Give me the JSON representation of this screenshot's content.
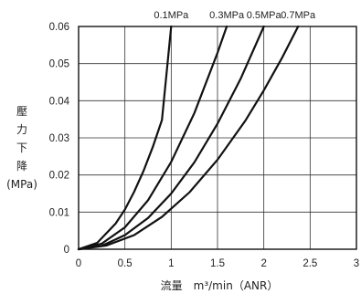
{
  "chart_data": {
    "type": "line",
    "xlim": [
      0,
      3
    ],
    "ylim": [
      0,
      0.06
    ],
    "xticks": [
      "0",
      "0.5",
      "1",
      "1.5",
      "2",
      "2.5",
      "3"
    ],
    "yticks": [
      "0",
      "0.01",
      "0.02",
      "0.03",
      "0.04",
      "0.05",
      "0.06"
    ],
    "xlabel": "流量　m³/min（ANR）",
    "ylabel_lines": [
      "壓",
      "力",
      "下",
      "降",
      "(MPa)"
    ],
    "grid": true,
    "series": [
      {
        "name": "0.1MPa",
        "x": [
          0,
          0.2,
          0.4,
          0.5,
          0.6,
          0.7,
          0.8,
          0.9,
          1.0
        ],
        "y": [
          0,
          0.0017,
          0.0069,
          0.0107,
          0.0155,
          0.021,
          0.0275,
          0.0348,
          0.06
        ]
      },
      {
        "name": "0.3MPa",
        "x": [
          0,
          0.25,
          0.5,
          0.75,
          1.0,
          1.25,
          1.5,
          1.6
        ],
        "y": [
          0,
          0.0015,
          0.0059,
          0.0132,
          0.0235,
          0.0367,
          0.0529,
          0.06
        ]
      },
      {
        "name": "0.5MPa",
        "x": [
          0,
          0.25,
          0.5,
          0.75,
          1.0,
          1.25,
          1.5,
          1.75,
          2.0
        ],
        "y": [
          0,
          0.0009,
          0.0038,
          0.0084,
          0.015,
          0.0234,
          0.0338,
          0.0459,
          0.06
        ]
      },
      {
        "name": "0.7MPa",
        "x": [
          0,
          0.3,
          0.6,
          0.9,
          1.2,
          1.5,
          1.8,
          2.0,
          2.2,
          2.37
        ],
        "y": [
          0,
          0.001,
          0.0038,
          0.0087,
          0.0154,
          0.0241,
          0.0346,
          0.0428,
          0.0517,
          0.06
        ]
      }
    ]
  }
}
